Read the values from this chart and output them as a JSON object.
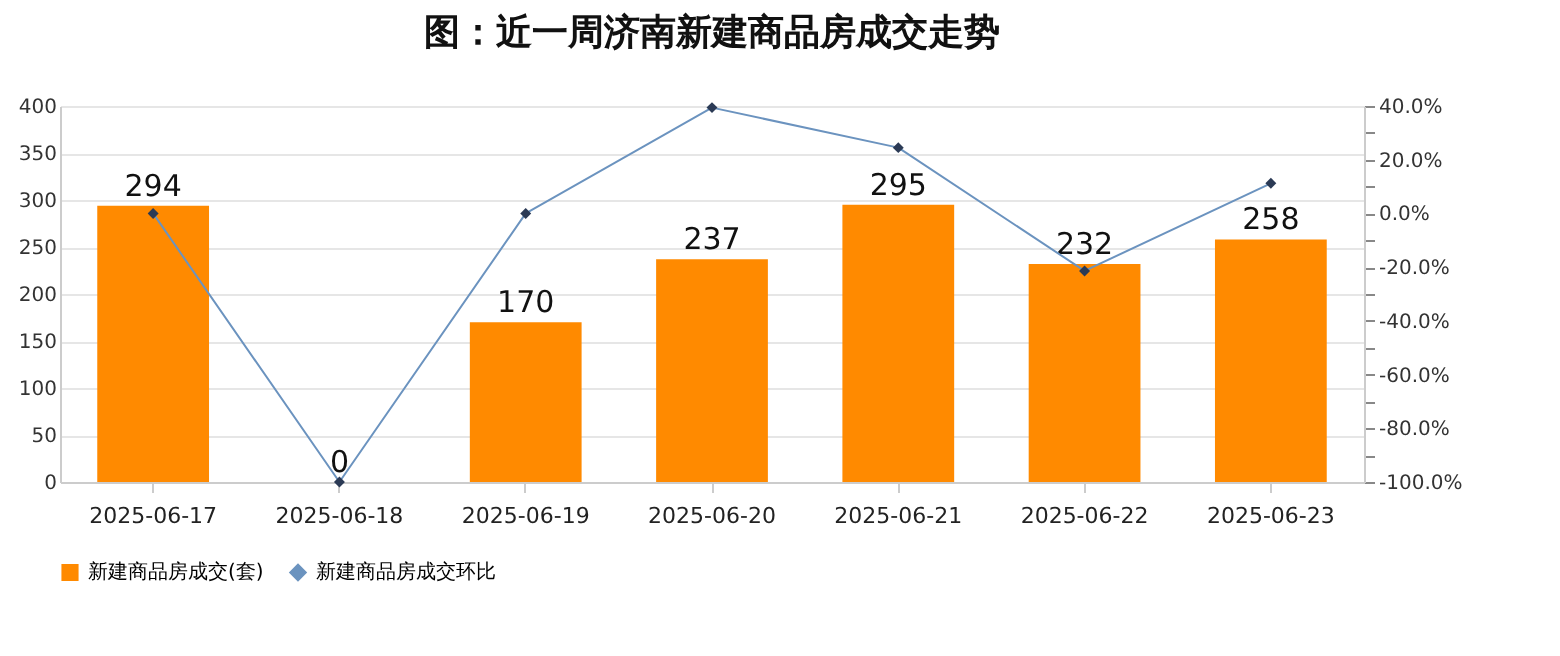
{
  "chart_data": {
    "type": "bar",
    "title": "图：近一周济南新建商品房成交走势",
    "categories": [
      "2025-06-17",
      "2025-06-18",
      "2025-06-19",
      "2025-06-20",
      "2025-06-21",
      "2025-06-22",
      "2025-06-23"
    ],
    "series": [
      {
        "name": "新建商品房成交(套)",
        "color": "#ff8a00",
        "values": [
          294,
          0,
          170,
          237,
          295,
          232,
          258
        ],
        "value_labels": [
          "294",
          "0",
          "170",
          "237",
          "295",
          "232",
          "258"
        ]
      },
      {
        "name": "新建商品房成交环比",
        "type": "line",
        "axis": "y2",
        "color": "#6b93bf",
        "marker": "diamond",
        "line_style": "solid",
        "values": [
          0,
          -100,
          0,
          39.4,
          24.5,
          -21.4,
          11.2
        ]
      }
    ],
    "ylim": [
      0,
      400
    ],
    "yticks": [
      0,
      50,
      100,
      150,
      200,
      250,
      300,
      350,
      400
    ],
    "y2lim": [
      -100,
      40
    ],
    "y2ticks": [
      {
        "value": -100,
        "label": "-100.0%"
      },
      {
        "value": -90,
        "label": null
      },
      {
        "value": -80,
        "label": "-80.0%"
      },
      {
        "value": -70,
        "label": null
      },
      {
        "value": -60,
        "label": "-60.0%"
      },
      {
        "value": -50,
        "label": null
      },
      {
        "value": -40,
        "label": "-40.0%"
      },
      {
        "value": -30,
        "label": null
      },
      {
        "value": -20,
        "label": "-20.0%"
      },
      {
        "value": -10,
        "label": null
      },
      {
        "value": 0,
        "label": "0.0%"
      },
      {
        "value": 10,
        "label": null
      },
      {
        "value": 20,
        "label": "20.0%"
      },
      {
        "value": 30,
        "label": null
      },
      {
        "value": 40,
        "label": "40.0%"
      }
    ],
    "grid": "y",
    "legend": "bottom"
  }
}
